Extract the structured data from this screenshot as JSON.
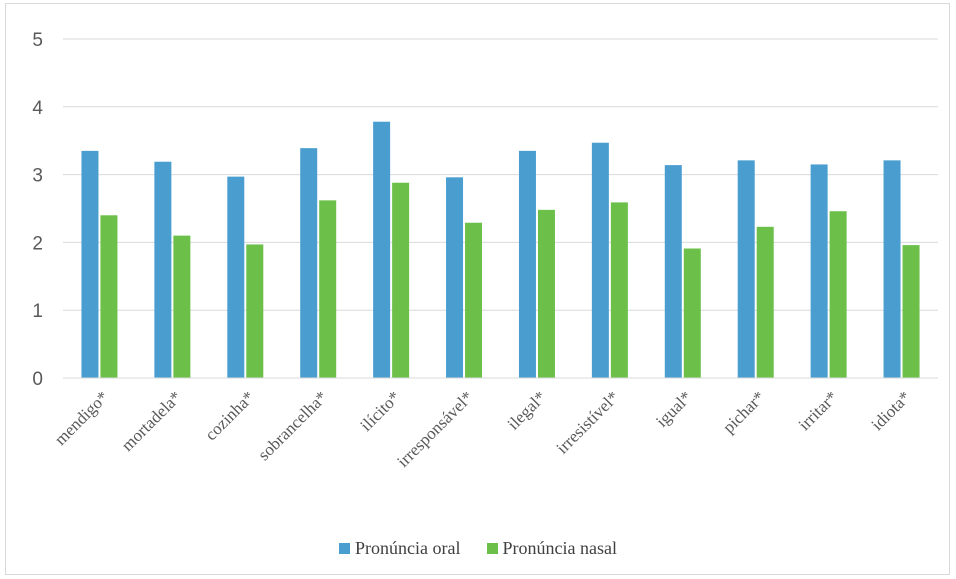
{
  "chart_data": {
    "type": "bar",
    "categories": [
      "mendigo*",
      "mortadela*",
      "cozinha*",
      "sobrancelha*",
      "ilícito*",
      "irresponsável*",
      "ilegal*",
      "irresistível*",
      "igual*",
      "pichar*",
      "irritar*",
      "idiota*"
    ],
    "series": [
      {
        "name": "Pronúncia oral",
        "color": "#4a9ecf",
        "values": [
          3.35,
          3.19,
          2.97,
          3.39,
          3.78,
          2.96,
          3.35,
          3.47,
          3.14,
          3.21,
          3.15,
          3.21
        ]
      },
      {
        "name": "Pronúncia nasal",
        "color": "#6cc04a",
        "values": [
          2.4,
          2.1,
          1.97,
          2.62,
          2.88,
          2.29,
          2.48,
          2.59,
          1.91,
          2.23,
          2.46,
          1.96
        ]
      }
    ],
    "ylim": [
      0,
      5
    ],
    "yticks": [
      0,
      1,
      2,
      3,
      4,
      5
    ],
    "grid": true,
    "legend": "bottom"
  }
}
